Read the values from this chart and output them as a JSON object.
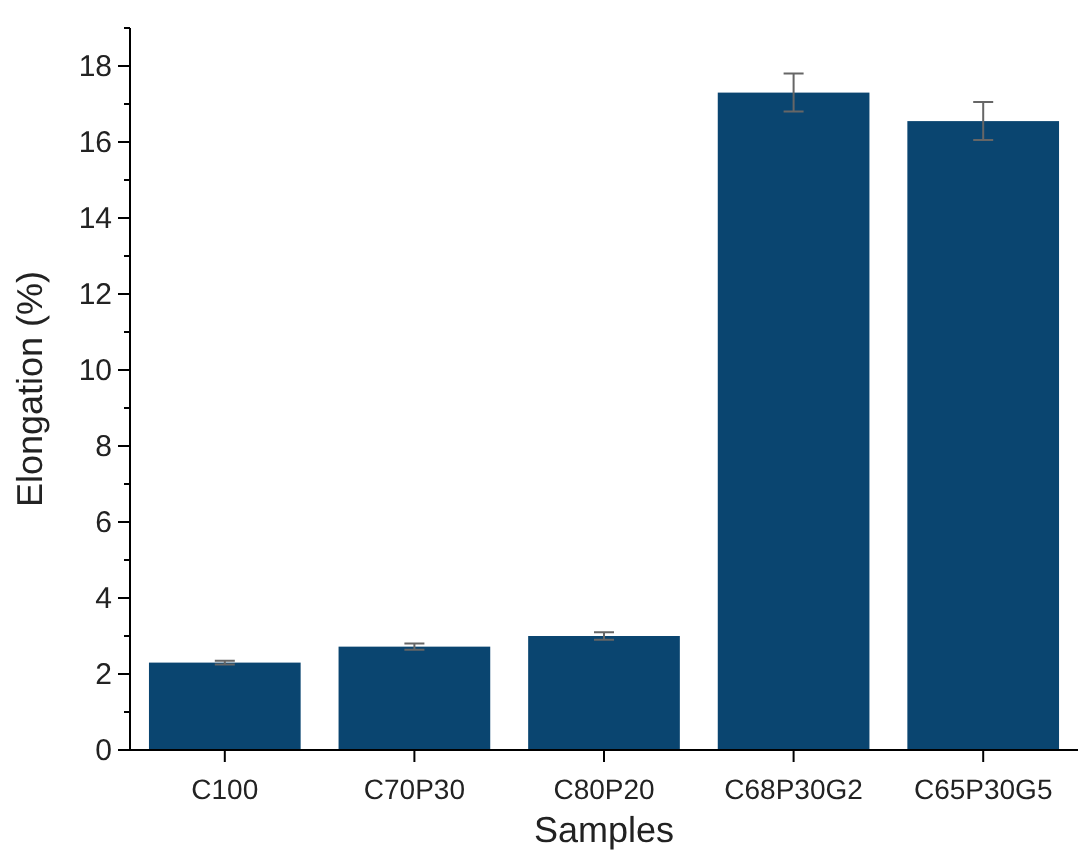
{
  "chart_data": {
    "type": "bar",
    "xlabel": "Samples",
    "ylabel": "Elongation (%)",
    "categories": [
      "C100",
      "C70P30",
      "C80P20",
      "C68P30G2",
      "C65P30G5"
    ],
    "values": [
      2.3,
      2.72,
      3.0,
      17.3,
      16.55
    ],
    "errors": [
      0.05,
      0.08,
      0.1,
      0.5,
      0.5
    ],
    "color": "#0a4570",
    "ylim": [
      0,
      19
    ],
    "yticks": [
      0,
      2,
      4,
      6,
      8,
      10,
      12,
      14,
      16,
      18
    ],
    "grid": false
  }
}
